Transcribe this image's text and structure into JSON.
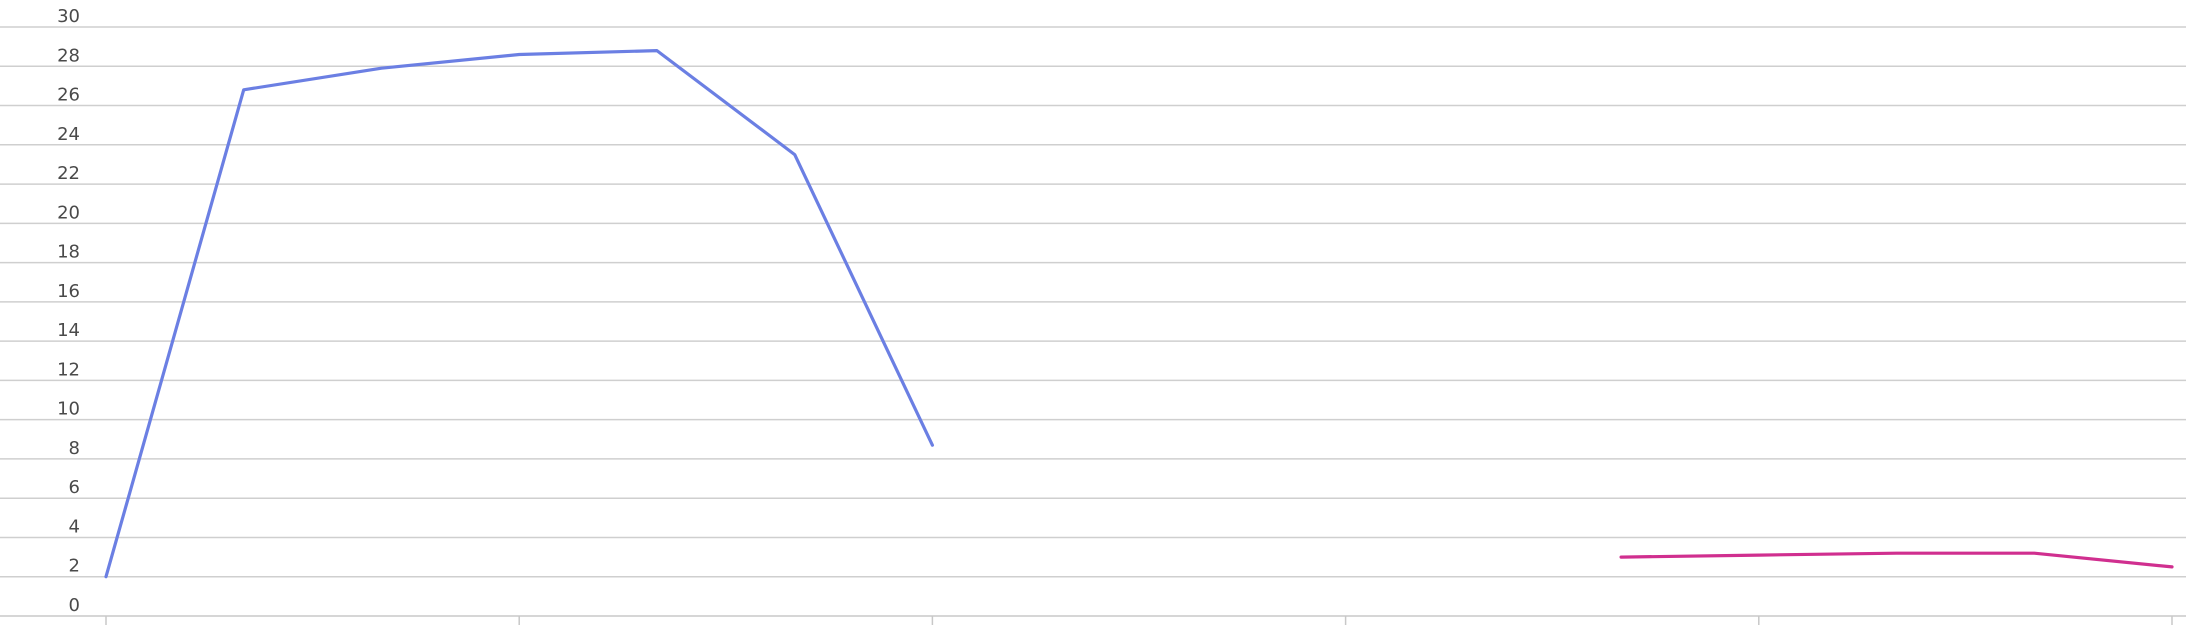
{
  "chart_data": {
    "type": "line",
    "title": "",
    "xlabel": "",
    "ylabel": "",
    "ylim": [
      0,
      30
    ],
    "y_ticks": [
      0,
      2,
      4,
      6,
      8,
      10,
      12,
      14,
      16,
      18,
      20,
      22,
      24,
      26,
      28,
      30
    ],
    "x_range": [
      0,
      15
    ],
    "x_ticks": [
      0,
      3,
      6,
      9,
      12,
      15
    ],
    "grid": true,
    "legend": "none",
    "series": [
      {
        "color": "#6b7fe3",
        "points": [
          {
            "x": 0,
            "y": 2.0
          },
          {
            "x": 1,
            "y": 26.8
          },
          {
            "x": 2,
            "y": 27.9
          },
          {
            "x": 3,
            "y": 28.6
          },
          {
            "x": 4,
            "y": 28.8
          },
          {
            "x": 5,
            "y": 23.5
          },
          {
            "x": 6,
            "y": 8.7
          }
        ]
      },
      {
        "color": "#d02f8f",
        "points": [
          {
            "x": 11,
            "y": 3.0
          },
          {
            "x": 12,
            "y": 3.1
          },
          {
            "x": 13,
            "y": 3.2
          },
          {
            "x": 14,
            "y": 3.2
          },
          {
            "x": 15,
            "y": 2.5
          }
        ]
      }
    ]
  }
}
